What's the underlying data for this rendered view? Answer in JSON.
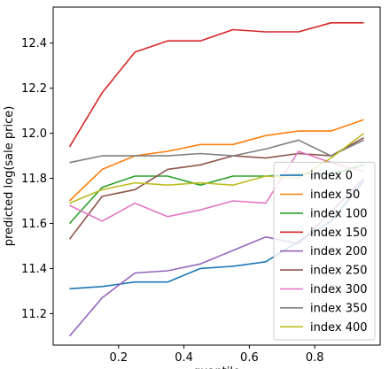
{
  "chart_data": {
    "type": "line",
    "title": "",
    "xlabel": "quantile",
    "ylabel": "predicted log(sale price)",
    "xlim": [
      0.0,
      1.0
    ],
    "ylim": [
      11.06,
      12.56
    ],
    "x": [
      0.05,
      0.15,
      0.25,
      0.35,
      0.45,
      0.55,
      0.65,
      0.75,
      0.85,
      0.95
    ],
    "x_ticks": [
      0.2,
      0.4,
      0.6,
      0.8
    ],
    "x_tick_labels": [
      "0.2",
      "0.4",
      "0.6",
      "0.8"
    ],
    "y_ticks": [
      11.2,
      11.4,
      11.6,
      11.8,
      12.0,
      12.2,
      12.4
    ],
    "y_tick_labels": [
      "11.2",
      "11.4",
      "11.6",
      "11.8",
      "12.0",
      "12.2",
      "12.4"
    ],
    "grid": false,
    "legend_position": "lower-right",
    "series": [
      {
        "name": "index 0",
        "color": "#1f77b4",
        "values": [
          11.31,
          11.32,
          11.34,
          11.34,
          11.4,
          11.41,
          11.43,
          11.52,
          11.61,
          11.79
        ]
      },
      {
        "name": "index 50",
        "color": "#ff7f0e",
        "values": [
          11.7,
          11.84,
          11.9,
          11.92,
          11.95,
          11.95,
          11.99,
          12.01,
          12.01,
          12.06
        ]
      },
      {
        "name": "index 100",
        "color": "#2ca02c",
        "values": [
          11.6,
          11.76,
          11.81,
          11.81,
          11.77,
          11.81,
          11.81,
          11.82,
          11.82,
          11.86
        ]
      },
      {
        "name": "index 150",
        "color": "#d62728",
        "values": [
          11.94,
          12.18,
          12.36,
          12.41,
          12.41,
          12.46,
          12.45,
          12.45,
          12.49,
          12.49
        ]
      },
      {
        "name": "index 200",
        "color": "#9467bd",
        "values": [
          11.1,
          11.27,
          11.38,
          11.39,
          11.42,
          11.48,
          11.54,
          11.51,
          11.65,
          11.8
        ]
      },
      {
        "name": "index 250",
        "color": "#8c564b",
        "values": [
          11.53,
          11.72,
          11.75,
          11.84,
          11.86,
          11.9,
          11.89,
          11.91,
          11.9,
          11.98
        ]
      },
      {
        "name": "index 300",
        "color": "#e377c2",
        "values": [
          11.68,
          11.61,
          11.69,
          11.63,
          11.66,
          11.7,
          11.69,
          11.92,
          11.87,
          11.83
        ]
      },
      {
        "name": "index 350",
        "color": "#7f7f7f",
        "values": [
          11.87,
          11.9,
          11.9,
          11.9,
          11.91,
          11.9,
          11.93,
          11.97,
          11.9,
          11.97
        ]
      },
      {
        "name": "index 400",
        "color": "#bcbd22",
        "values": [
          11.69,
          11.75,
          11.78,
          11.77,
          11.78,
          11.77,
          11.81,
          11.8,
          11.89,
          12.0
        ]
      }
    ]
  }
}
